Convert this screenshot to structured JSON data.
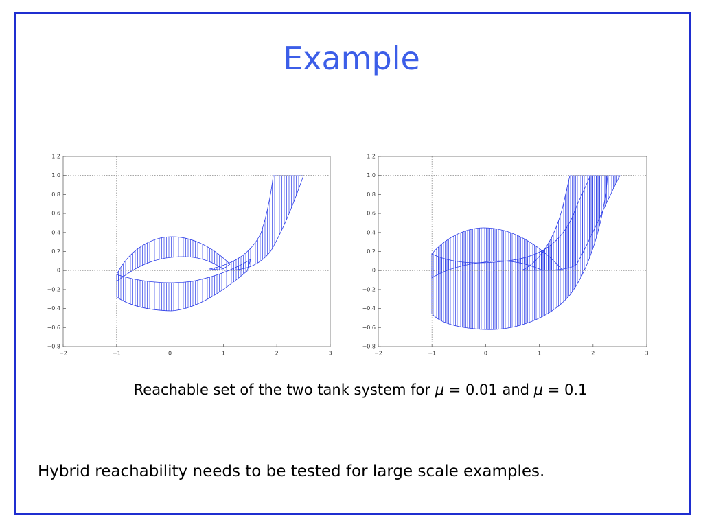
{
  "title": "Example",
  "chart_data": [
    {
      "type": "line",
      "xlim": [
        -2,
        3
      ],
      "ylim": [
        -0.8,
        1.2
      ],
      "xticks": [
        {
          "value": -2,
          "label": "−2"
        },
        {
          "value": -1,
          "label": "−1"
        },
        0,
        1,
        2,
        3
      ],
      "yticks": [
        {
          "value": -0.8,
          "label": "−0.8"
        },
        {
          "value": -0.6,
          "label": "−0.6"
        },
        {
          "value": -0.4,
          "label": "−0.4"
        },
        {
          "value": -0.2,
          "label": "−0.2"
        },
        0,
        0.2,
        0.4,
        0.6,
        0.8,
        {
          "value": 1,
          "label": "1.0"
        },
        1.2
      ]
    },
    {
      "type": "line",
      "xlim": [
        -2,
        3
      ],
      "ylim": [
        -0.8,
        1.2
      ],
      "xticks": [
        {
          "value": -2,
          "label": "−2"
        },
        {
          "value": -1,
          "label": "−1"
        },
        0,
        1,
        2,
        3
      ],
      "yticks": [
        {
          "value": -0.8,
          "label": "−0.8"
        },
        {
          "value": -0.6,
          "label": "−0.6"
        },
        {
          "value": -0.4,
          "label": "−0.4"
        },
        {
          "value": -0.2,
          "label": "−0.2"
        },
        0,
        0.2,
        0.4,
        0.6,
        0.8,
        {
          "value": 1,
          "label": "1.0"
        },
        1.2
      ]
    }
  ],
  "caption": {
    "text": "Reachable set of the two tank system for ",
    "mu1": "μ",
    "eq1": " = 0.01 and ",
    "mu2": "μ",
    "eq2": " = 0.1"
  },
  "note": "Hybrid reachability needs to be tested for large scale examples."
}
